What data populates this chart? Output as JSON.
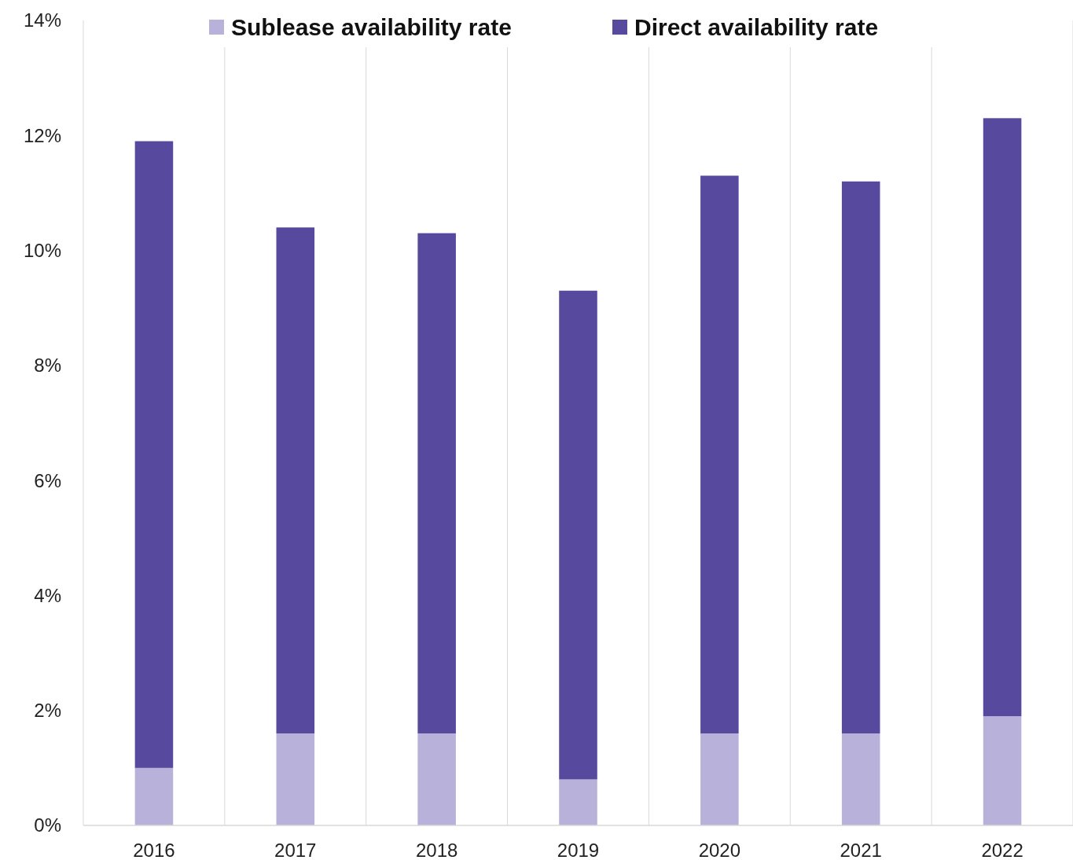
{
  "chart_data": {
    "type": "bar",
    "stacked": true,
    "categories": [
      "2016",
      "2017",
      "2018",
      "2019",
      "2020",
      "2021",
      "2022"
    ],
    "series": [
      {
        "name": "Sublease availability rate",
        "color": "#b8b1da",
        "values": [
          1.0,
          1.6,
          1.6,
          0.8,
          1.6,
          1.6,
          1.9
        ]
      },
      {
        "name": "Direct availability rate",
        "color": "#574a9e",
        "values": [
          10.9,
          8.8,
          8.7,
          8.5,
          9.7,
          9.6,
          10.4
        ]
      }
    ],
    "ylim": [
      0,
      14
    ],
    "yticks": [
      {
        "value": 0,
        "label": "0%"
      },
      {
        "value": 2,
        "label": "2%"
      },
      {
        "value": 4,
        "label": "4%"
      },
      {
        "value": 6,
        "label": "6%"
      },
      {
        "value": 8,
        "label": "8%"
      },
      {
        "value": 10,
        "label": "10%"
      },
      {
        "value": 12,
        "label": "12%"
      },
      {
        "value": 14,
        "label": "14%"
      }
    ],
    "grid": "x",
    "legend": "top"
  }
}
